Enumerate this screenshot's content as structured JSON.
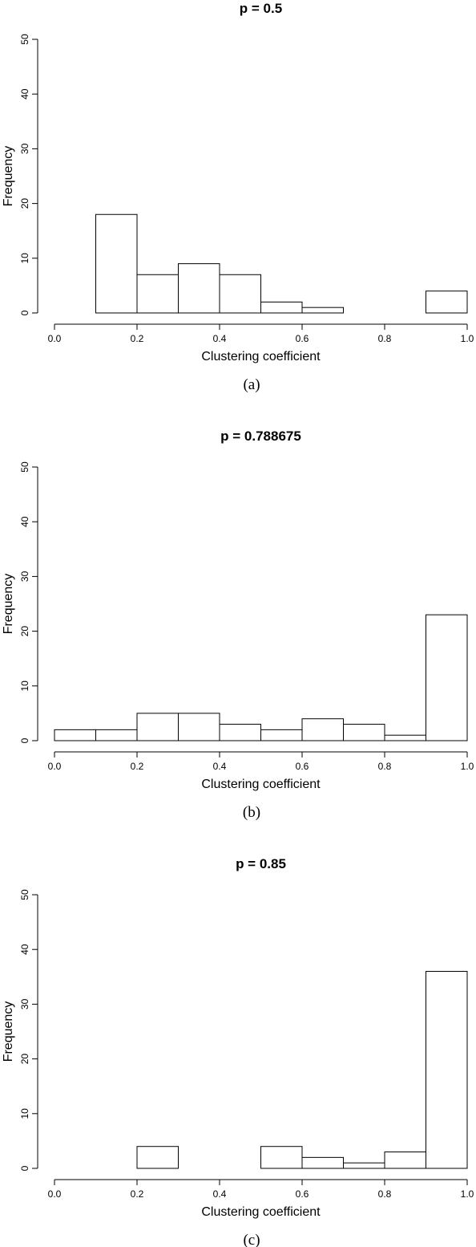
{
  "chart_data": [
    {
      "type": "bar",
      "title": "p = 0.5",
      "xlabel": "Clustering coefficient",
      "ylabel": "Frequency",
      "caption": "(a)",
      "bin_edges": [
        0.0,
        0.1,
        0.2,
        0.3,
        0.4,
        0.5,
        0.6,
        0.7,
        0.8,
        0.9,
        1.0
      ],
      "values": [
        0,
        18,
        7,
        9,
        7,
        2,
        1,
        0,
        0,
        4
      ],
      "xlim": [
        0,
        1
      ],
      "ylim": [
        0,
        50
      ],
      "xticks": [
        "0.0",
        "0.2",
        "0.4",
        "0.6",
        "0.8",
        "1.0"
      ],
      "yticks": [
        "0",
        "10",
        "20",
        "30",
        "40",
        "50"
      ],
      "grid": false,
      "legend": "none"
    },
    {
      "type": "bar",
      "title": "p = 0.788675",
      "xlabel": "Clustering coefficient",
      "ylabel": "Frequency",
      "caption": "(b)",
      "bin_edges": [
        0.0,
        0.1,
        0.2,
        0.3,
        0.4,
        0.5,
        0.6,
        0.7,
        0.8,
        0.9,
        1.0
      ],
      "values": [
        2,
        2,
        5,
        5,
        3,
        2,
        4,
        3,
        1,
        23
      ],
      "xlim": [
        0,
        1
      ],
      "ylim": [
        0,
        50
      ],
      "xticks": [
        "0.0",
        "0.2",
        "0.4",
        "0.6",
        "0.8",
        "1.0"
      ],
      "yticks": [
        "0",
        "10",
        "20",
        "30",
        "40",
        "50"
      ],
      "grid": false,
      "legend": "none"
    },
    {
      "type": "bar",
      "title": "p = 0.85",
      "xlabel": "Clustering coefficient",
      "ylabel": "Frequency",
      "caption": "(c)",
      "bin_edges": [
        0.0,
        0.1,
        0.2,
        0.3,
        0.4,
        0.5,
        0.6,
        0.7,
        0.8,
        0.9,
        1.0
      ],
      "values": [
        0,
        0,
        4,
        0,
        0,
        4,
        2,
        1,
        3,
        36
      ],
      "xlim": [
        0,
        1
      ],
      "ylim": [
        0,
        50
      ],
      "xticks": [
        "0.0",
        "0.2",
        "0.4",
        "0.6",
        "0.8",
        "1.0"
      ],
      "yticks": [
        "0",
        "10",
        "20",
        "30",
        "40",
        "50"
      ],
      "grid": false,
      "legend": "none"
    }
  ]
}
